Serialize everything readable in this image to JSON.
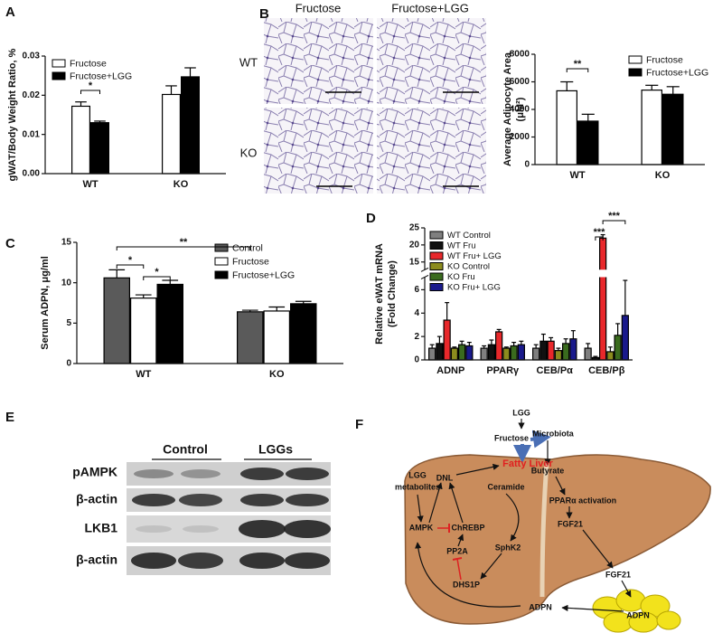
{
  "chart_data": [
    {
      "type": "bar",
      "panel": "A",
      "ylabel": "gWAT/Body Weight Ratio, %",
      "categories": [
        "WT",
        "KO"
      ],
      "series": [
        {
          "name": "Fructose",
          "color": "#ffffff",
          "values": [
            0.0172,
            0.0202
          ],
          "errors": [
            0.0011,
            0.0022
          ]
        },
        {
          "name": "Fructose+LGG",
          "color": "#000000",
          "values": [
            0.013,
            0.0247
          ],
          "errors": [
            0.0004,
            0.0023
          ]
        }
      ],
      "ylim": [
        0,
        0.03
      ],
      "yticks": [
        {
          "value": 0,
          "label": "0.00"
        },
        0.01,
        0.02,
        0.03
      ],
      "legend": "top-left",
      "annotations": [
        "*"
      ]
    },
    {
      "type": "bar",
      "ylabel": [
        "Average Adipocyte Area",
        "(μM²)"
      ],
      "categories": [
        "WT",
        "KO"
      ],
      "series": [
        {
          "name": "Fructose",
          "color": "#ffffff",
          "values": [
            5350,
            5400
          ],
          "errors": [
            650,
            350
          ]
        },
        {
          "name": "Fructose+LGG",
          "color": "#000000",
          "values": [
            3150,
            5100
          ],
          "errors": [
            500,
            550
          ]
        }
      ],
      "ylim": [
        0,
        8000
      ],
      "yticks": [
        0,
        2000,
        4000,
        6000,
        8000
      ],
      "legend": "top-right",
      "annotations": [
        "**"
      ]
    },
    {
      "type": "bar",
      "panel": "C",
      "ylabel": "Serum ADPN, μg/ml",
      "categories": [
        "WT",
        "KO"
      ],
      "series": [
        {
          "name": "Control",
          "color": "#5a5a5a",
          "values": [
            10.6,
            6.4
          ],
          "errors": [
            1.0,
            0.2
          ]
        },
        {
          "name": "Fructose",
          "color": "#ffffff",
          "values": [
            8.1,
            6.5
          ],
          "errors": [
            0.4,
            0.5
          ]
        },
        {
          "name": "Fructose+LGG",
          "color": "#000000",
          "values": [
            9.8,
            7.4
          ],
          "errors": [
            0.5,
            0.3
          ]
        }
      ],
      "ylim": [
        0,
        15
      ],
      "yticks": [
        0,
        5,
        10,
        15
      ],
      "legend": "top-right",
      "annotations": [
        "**",
        "*",
        "*"
      ]
    },
    {
      "type": "bar",
      "panel": "D",
      "ylabel": [
        "Relative eWAT mRNA",
        "(Fold Change)"
      ],
      "categories": [
        "ADNP",
        "PPARγ",
        "CEB/Pα",
        "CEB/Pβ"
      ],
      "series": [
        {
          "name": "WT Control",
          "color": "#7f7f7f",
          "values": [
            1.0,
            1.0,
            1.0,
            1.0
          ],
          "errors": [
            0.3,
            0.2,
            0.3,
            0.4
          ]
        },
        {
          "name": "WT Fru",
          "color": "#111111",
          "values": [
            1.4,
            1.3,
            1.6,
            0.2
          ],
          "errors": [
            0.6,
            0.4,
            0.6,
            0.1
          ]
        },
        {
          "name": "WT Fru+ LGG",
          "color": "#e8282b",
          "values": [
            3.4,
            2.4,
            1.6,
            22
          ],
          "errors": [
            1.5,
            0.2,
            0.3,
            1.0
          ]
        },
        {
          "name": "KO Control",
          "color": "#8c8c1e",
          "values": [
            1.0,
            1.0,
            0.8,
            0.7
          ],
          "errors": [
            0.1,
            0.1,
            0.2,
            0.4
          ]
        },
        {
          "name": "KO Fru",
          "color": "#3a6b1e",
          "values": [
            1.3,
            1.2,
            1.4,
            2.1
          ],
          "errors": [
            0.3,
            0.3,
            0.4,
            1.0
          ]
        },
        {
          "name": "KO Fru+ LGG",
          "color": "#1a1a8c",
          "values": [
            1.2,
            1.3,
            1.8,
            3.8
          ],
          "errors": [
            0.3,
            0.3,
            0.7,
            3.0
          ]
        }
      ],
      "ylim": [
        0,
        25
      ],
      "ybreak": [
        7,
        13
      ],
      "yticks": [
        0,
        2,
        4,
        6,
        15,
        20,
        25
      ],
      "legend": "top-left",
      "annotations": [
        "***",
        "***"
      ]
    }
  ],
  "panel_b_images": {
    "label": "B",
    "columns": [
      "Fructose",
      "Fructose+LGG"
    ],
    "rows": [
      "WT",
      "KO"
    ]
  },
  "panel_e": {
    "label": "E",
    "groups": [
      "Control",
      "LGGs"
    ],
    "rows": [
      "pAMPK",
      "β-actin",
      "LKB1",
      "β-actin"
    ]
  },
  "panel_f": {
    "label": "F",
    "nodes": [
      "LGG",
      "Microbiota",
      "Fructose",
      "Butyrate",
      "LGG",
      "metabolites",
      "Fatty Liver",
      "DNL",
      "Ceramide",
      "PPARα activation",
      "AMPK",
      "ChREBP",
      "FGF21",
      "SphK2",
      "PP2A",
      "DHS1P",
      "FGF21",
      "ADPN",
      "ADPN"
    ]
  }
}
